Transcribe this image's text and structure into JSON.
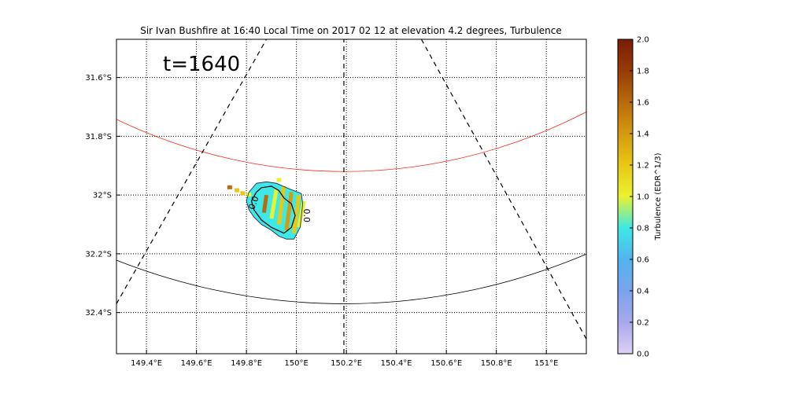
{
  "chart_data": {
    "type": "heatmap",
    "title": "Sir Ivan Bushfire at 16:40 Local Time on 2017 02 12 at elevation 4.2 degrees, Turbulence",
    "annotation": "t=1640",
    "xlim": [
      149.28,
      151.16
    ],
    "ylim": [
      -32.54,
      -31.47
    ],
    "x_ticks": [
      {
        "value": 149.4,
        "label": "149.4°E"
      },
      {
        "value": 149.6,
        "label": "149.6°E"
      },
      {
        "value": 149.8,
        "label": "149.8°E"
      },
      {
        "value": 150.0,
        "label": "150°E"
      },
      {
        "value": 150.2,
        "label": "150.2°E"
      },
      {
        "value": 150.4,
        "label": "150.4°E"
      },
      {
        "value": 150.6,
        "label": "150.6°E"
      },
      {
        "value": 150.8,
        "label": "150.8°E"
      },
      {
        "value": 151.0,
        "label": "151°E"
      }
    ],
    "y_ticks": [
      {
        "value": -31.6,
        "label": "31.6°S"
      },
      {
        "value": -31.8,
        "label": "31.8°S"
      },
      {
        "value": -32.0,
        "label": "32°S"
      },
      {
        "value": -32.2,
        "label": "32.2°S"
      },
      {
        "value": -32.4,
        "label": "32.4°S"
      }
    ],
    "grid": true,
    "colorbar": {
      "label": "Turbulence (EDR^1/3)",
      "min": 0.0,
      "max": 2.0,
      "ticks": [
        "0.0",
        "0.2",
        "0.4",
        "0.6",
        "0.8",
        "1.0",
        "1.2",
        "1.4",
        "1.6",
        "1.8",
        "2.0"
      ],
      "colors": [
        "#dcd0f4",
        "#a8a8ec",
        "#7aa4ec",
        "#52b4ee",
        "#3ee8e6",
        "#eaf230",
        "#e8c814",
        "#d49a10",
        "#b86a0c",
        "#963c06",
        "#7a1c02"
      ]
    },
    "range_rings": [
      {
        "color": "#ff2a1a",
        "center_lon": 150.19,
        "center_lat": -29.5,
        "radius_deg": 2.42
      },
      {
        "color": "#000000",
        "center_lon": 150.19,
        "center_lat": -29.5,
        "radius_deg": 2.87
      }
    ],
    "azimuth_lines": [
      {
        "from": [
          149.28,
          -32.37
        ],
        "to": [
          149.88,
          -31.47
        ]
      },
      {
        "from": [
          150.19,
          -32.54
        ],
        "to": [
          150.19,
          -31.47
        ]
      },
      {
        "from": [
          150.5,
          -31.47
        ],
        "to": [
          151.16,
          -32.49
        ]
      }
    ],
    "contour_labels": [
      "0.0",
      "0.0"
    ],
    "strips": [
      {
        "x0": 149.93,
        "y0": -32.1,
        "x1": 149.95,
        "y1": -31.97,
        "value": 1.1
      },
      {
        "x0": 149.96,
        "y0": -32.12,
        "x1": 149.98,
        "y1": -31.99,
        "value": 1.4
      },
      {
        "x0": 149.99,
        "y0": -32.13,
        "x1": 150.01,
        "y1": -32.0,
        "value": 1.2
      },
      {
        "x0": 149.9,
        "y0": -32.08,
        "x1": 149.92,
        "y1": -31.98,
        "value": 0.9
      },
      {
        "x0": 149.87,
        "y0": -32.06,
        "x1": 149.88,
        "y1": -32.0,
        "value": 1.5
      },
      {
        "x0": 150.01,
        "y0": -32.11,
        "x1": 150.03,
        "y1": -32.02,
        "value": 1.0
      }
    ],
    "plume_points": [
      {
        "x": 149.733,
        "y": -31.975,
        "value": 1.5
      },
      {
        "x": 149.762,
        "y": -31.985,
        "value": 1.25
      },
      {
        "x": 149.785,
        "y": -31.995,
        "value": 1.2
      },
      {
        "x": 149.81,
        "y": -32.0,
        "value": 1.05
      },
      {
        "x": 149.93,
        "y": -31.95,
        "value": 0.95
      }
    ]
  }
}
